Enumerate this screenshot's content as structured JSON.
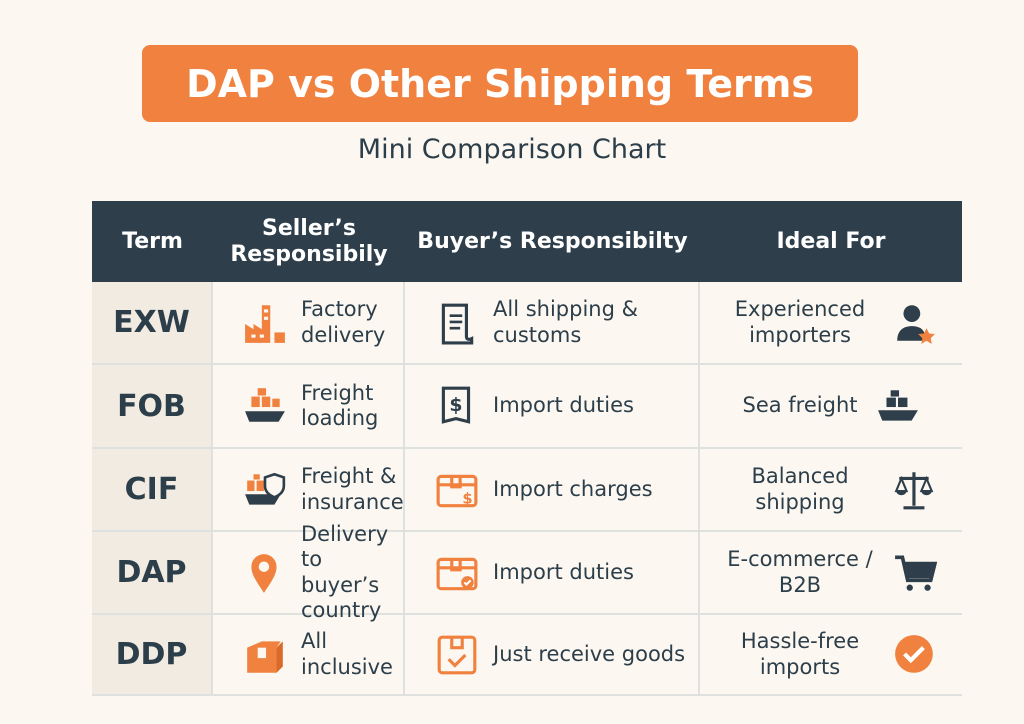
{
  "title": "DAP vs Other Shipping Terms",
  "subtitle": "Mini Comparison Chart",
  "headers": {
    "term": "Term",
    "seller": "Seller’s Responsibily",
    "buyer": "Buyer’s Responsibilty",
    "ideal": "Ideal For"
  },
  "colors": {
    "accent": "#f0813f",
    "dark": "#2e3e4a",
    "background": "#fcf8f1"
  },
  "rows": [
    {
      "term": "EXW",
      "seller": "Factory delivery",
      "seller_icon": "factory-icon",
      "buyer": "All shipping & customs",
      "buyer_icon": "document-icon",
      "ideal": "Experienced importers",
      "ideal_icon": "user-star-icon"
    },
    {
      "term": "FOB",
      "seller": "Freight loading",
      "seller_icon": "cargo-ship-icon",
      "buyer": "Import duties",
      "buyer_icon": "dollar-document-icon",
      "ideal": "Sea freight",
      "ideal_icon": "ship-icon"
    },
    {
      "term": "CIF",
      "seller": "Freight & insurance",
      "seller_icon": "ship-shield-icon",
      "buyer": "Import charges",
      "buyer_icon": "box-dollar-icon",
      "ideal": "Balanced shipping",
      "ideal_icon": "scales-icon"
    },
    {
      "term": "DAP",
      "seller": "Delivery to buyer’s country",
      "seller_icon": "location-pin-icon",
      "buyer": "Import duties",
      "buyer_icon": "box-check-icon",
      "ideal": "E-commerce / B2B",
      "ideal_icon": "cart-icon"
    },
    {
      "term": "DDP",
      "seller": "All inclusive",
      "seller_icon": "package-icon",
      "buyer": "Just receive goods",
      "buyer_icon": "box-checkmark-icon",
      "ideal": "Hassle-free imports",
      "ideal_icon": "check-circle-icon"
    }
  ]
}
